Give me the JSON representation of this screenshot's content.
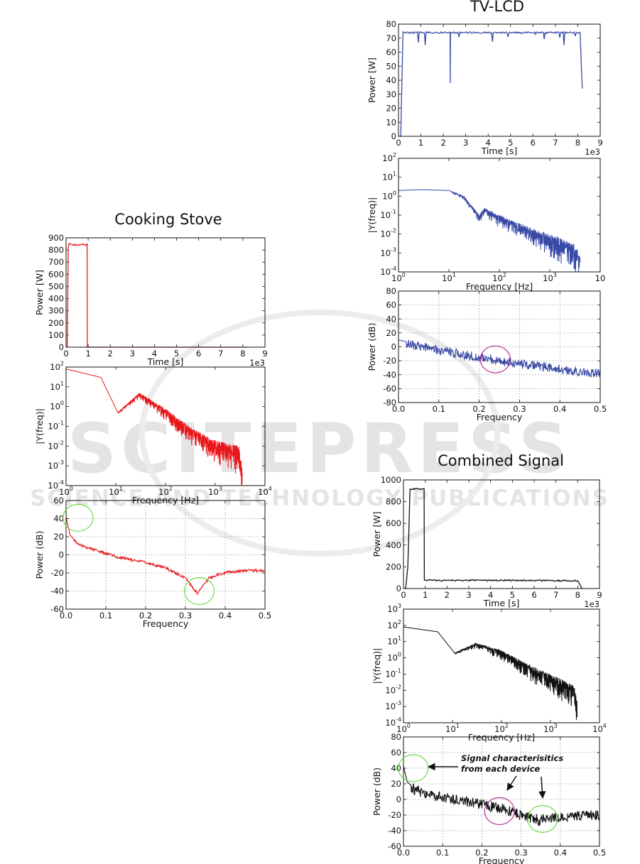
{
  "watermark": {
    "main": "SCITEPRESS",
    "sub": "SCIENCE AND TECHNOLOGY PUBLICATIONS"
  },
  "groups": [
    {
      "id": "stove",
      "title": "Cooking Stove"
    },
    {
      "id": "tv",
      "title": "TV-LCD"
    },
    {
      "id": "comb",
      "title": "Combined Signal"
    }
  ],
  "annotation": {
    "line1": "Signal characterisitics",
    "line2": "from each device"
  },
  "colors": {
    "stove": "#e8171b",
    "tv": "#3949a6",
    "combined": "#111111",
    "green_circle": "#6fdc4a",
    "magenta_circle": "#b4309b"
  },
  "chart_data": [
    {
      "id": "stove-time",
      "panel": "Cooking Stove",
      "type": "line",
      "color": "#e8171b",
      "xlabel": "Time [s]",
      "ylabel": "Power [W]",
      "offset_label": "1e3",
      "xlim": [
        0,
        9
      ],
      "ylim": [
        0,
        900
      ],
      "xticks": [
        "0",
        "1",
        "2",
        "3",
        "4",
        "5",
        "6",
        "7",
        "8",
        "9"
      ],
      "yticks": [
        "0",
        "100",
        "200",
        "300",
        "400",
        "500",
        "600",
        "700",
        "800",
        "900"
      ],
      "x_units_e3": [
        0,
        0.05,
        0.1,
        0.15,
        0.3,
        0.5,
        0.7,
        0.9,
        0.95,
        0.96,
        1.0,
        8.2
      ],
      "y": [
        0,
        0,
        830,
        850,
        845,
        840,
        848,
        842,
        850,
        0,
        0,
        0
      ]
    },
    {
      "id": "stove-fft",
      "panel": "Cooking Stove",
      "type": "line",
      "scale": "log-log",
      "color": "#e8171b",
      "xlabel": "Frequency [Hz]",
      "ylabel": "|Y(freq)|",
      "xlim_exp": [
        0,
        4
      ],
      "ylim_exp": [
        -4,
        2
      ],
      "xticks": [
        "10^0",
        "10^1",
        "10^2",
        "10^3",
        "10^4"
      ],
      "yticks": [
        "10^-4",
        "10^-3",
        "10^-2",
        "10^-1",
        "10^0",
        "10^1",
        "10^2"
      ],
      "x": [
        1,
        5,
        11,
        30,
        100,
        300,
        1000,
        3000,
        3500
      ],
      "y": [
        80,
        30,
        0.5,
        5,
        0.8,
        0.1,
        0.02,
        0.01,
        0.001
      ]
    },
    {
      "id": "stove-psd",
      "panel": "Cooking Stove",
      "type": "line",
      "color": "#e8171b",
      "grid": true,
      "xlabel": "Frequency",
      "ylabel": "Power (dB)",
      "xlim": [
        0,
        0.5
      ],
      "ylim": [
        -60,
        60
      ],
      "xticks": [
        "0.0",
        "0.1",
        "0.2",
        "0.3",
        "0.4",
        "0.5"
      ],
      "yticks": [
        "-60",
        "-40",
        "-20",
        "0",
        "20",
        "40",
        "60"
      ],
      "x": [
        0,
        0.01,
        0.03,
        0.07,
        0.13,
        0.2,
        0.25,
        0.3,
        0.33,
        0.36,
        0.4,
        0.45,
        0.5
      ],
      "y": [
        42,
        22,
        12,
        6,
        -2,
        -8,
        -14,
        -25,
        -42,
        -25,
        -19,
        -17,
        -17
      ],
      "circles": [
        {
          "x": 0.03,
          "y": 41,
          "color": "green"
        },
        {
          "x": 0.335,
          "y": -40,
          "color": "green"
        }
      ]
    },
    {
      "id": "tv-time",
      "panel": "TV-LCD",
      "type": "line",
      "color": "#3949a6",
      "xlabel": "Time [s]",
      "ylabel": "Power [W]",
      "offset_label": "1e3",
      "xlim": [
        0,
        9
      ],
      "ylim": [
        0,
        80
      ],
      "xticks": [
        "0",
        "1",
        "2",
        "3",
        "4",
        "5",
        "6",
        "7",
        "8",
        "9"
      ],
      "yticks": [
        "0",
        "10",
        "20",
        "30",
        "40",
        "50",
        "60",
        "70",
        "80"
      ],
      "x_units_e3": [
        0,
        0.1,
        0.2,
        1.0,
        2.0,
        2.3,
        2.31,
        2.32,
        3.0,
        4.0,
        5.0,
        6.0,
        7.0,
        8.0,
        8.1,
        8.2
      ],
      "y": [
        0,
        0,
        74,
        74,
        74,
        74,
        38,
        74,
        74,
        74,
        74,
        74,
        74,
        74,
        74,
        34
      ]
    },
    {
      "id": "tv-fft",
      "panel": "TV-LCD",
      "type": "line",
      "scale": "log-log",
      "color": "#3949a6",
      "xlabel": "Frequency [Hz]",
      "ylabel": "|Y(freq)|",
      "xlim_exp": [
        0,
        4
      ],
      "ylim_exp": [
        -4,
        2
      ],
      "xticks": [
        "10^0",
        "10^1",
        "10^2",
        "10^3",
        "10"
      ],
      "yticks": [
        "10^-4",
        "10^-3",
        "10^-2",
        "10^-1",
        "10^0",
        "10^1",
        "10^2"
      ],
      "x": [
        1,
        3,
        10,
        20,
        40,
        50,
        100,
        300,
        1000,
        3000,
        4000
      ],
      "y": [
        2,
        2.2,
        2,
        1,
        0.1,
        0.25,
        0.1,
        0.03,
        0.01,
        0.003,
        0.001
      ]
    },
    {
      "id": "tv-psd",
      "panel": "TV-LCD",
      "type": "line",
      "color": "#3949a6",
      "grid": true,
      "xlabel": "Frequency",
      "ylabel": "Power (dB)",
      "xlim": [
        0,
        0.5
      ],
      "ylim": [
        -80,
        80
      ],
      "xticks": [
        "0.0",
        "0.1",
        "0.2",
        "0.3",
        "0.4",
        "0.5"
      ],
      "yticks": [
        "-80",
        "-60",
        "-40",
        "-20",
        "0",
        "20",
        "40",
        "60",
        "80"
      ],
      "x": [
        0,
        0.05,
        0.1,
        0.15,
        0.2,
        0.25,
        0.3,
        0.35,
        0.4,
        0.45,
        0.5
      ],
      "y": [
        10,
        3,
        -3,
        -8,
        -14,
        -18,
        -22,
        -26,
        -30,
        -34,
        -36
      ],
      "circles": [
        {
          "x": 0.24,
          "y": -18,
          "color": "magenta"
        }
      ]
    },
    {
      "id": "comb-time",
      "panel": "Combined Signal",
      "type": "line",
      "color": "#111111",
      "xlabel": "Time [s]",
      "ylabel": "Power [W]",
      "offset_label": "1e3",
      "xlim": [
        0,
        9
      ],
      "ylim": [
        0,
        1000
      ],
      "xticks": [
        "0",
        "1",
        "2",
        "3",
        "4",
        "5",
        "6",
        "7",
        "8",
        "9"
      ],
      "yticks": [
        "0",
        "200",
        "400",
        "600",
        "800",
        "1000"
      ],
      "x_units_e3": [
        0,
        0.1,
        0.2,
        0.3,
        0.5,
        0.9,
        0.95,
        0.96,
        2.0,
        5.0,
        8.0,
        8.2
      ],
      "y": [
        0,
        0,
        200,
        910,
        920,
        915,
        920,
        75,
        75,
        75,
        72,
        0
      ]
    },
    {
      "id": "comb-fft",
      "panel": "Combined Signal",
      "type": "line",
      "scale": "log-log",
      "color": "#111111",
      "xlabel": "Frequency [Hz]",
      "ylabel": "|Y(freq)|",
      "xlim_exp": [
        0,
        4
      ],
      "ylim_exp": [
        -4,
        3
      ],
      "xticks": [
        "10^0",
        "10^1",
        "10^2",
        "10^3",
        "10^4"
      ],
      "yticks": [
        "10^-4",
        "10^-3",
        "10^-2",
        "10^-1",
        "10^0",
        "10^1",
        "10^2",
        "10^3"
      ],
      "x": [
        1,
        5,
        11,
        30,
        100,
        300,
        1000,
        3000,
        3500
      ],
      "y": [
        80,
        40,
        2,
        8,
        3,
        0.5,
        0.1,
        0.02,
        0.003
      ]
    },
    {
      "id": "comb-psd",
      "panel": "Combined Signal",
      "type": "line",
      "color": "#111111",
      "grid": true,
      "xlabel": "Frequency",
      "ylabel": "Power (dB)",
      "xlim": [
        0,
        0.5
      ],
      "ylim": [
        -60,
        80
      ],
      "xticks": [
        "0.0",
        "0.1",
        "0.2",
        "0.3",
        "0.4",
        "0.5"
      ],
      "yticks": [
        "-60",
        "-40",
        "-20",
        "0",
        "20",
        "40",
        "60",
        "80"
      ],
      "x": [
        0,
        0.01,
        0.03,
        0.07,
        0.13,
        0.2,
        0.25,
        0.3,
        0.35,
        0.4,
        0.45,
        0.5
      ],
      "y": [
        42,
        22,
        14,
        8,
        2,
        -4,
        -10,
        -18,
        -25,
        -20,
        -18,
        -17
      ],
      "circles": [
        {
          "x": 0.025,
          "y": 40,
          "color": "green"
        },
        {
          "x": 0.245,
          "y": -15,
          "color": "magenta"
        },
        {
          "x": 0.355,
          "y": -25,
          "color": "green"
        }
      ]
    }
  ]
}
